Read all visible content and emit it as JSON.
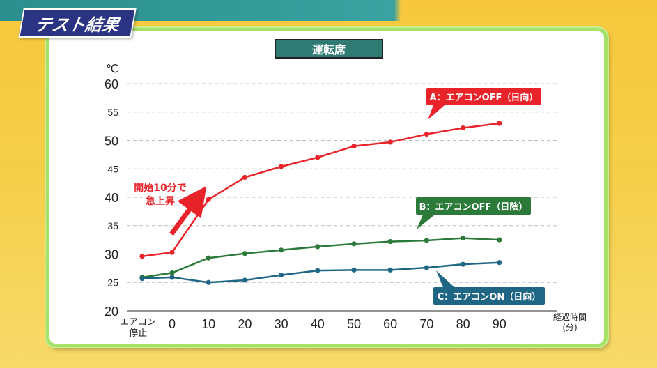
{
  "page": {
    "title": "テスト結果"
  },
  "chart_data": {
    "type": "line",
    "title": "運転席",
    "ylabel": "℃",
    "xlabel": "経過時間\n(分)",
    "ylim": [
      20,
      60
    ],
    "y_ticks": [
      20,
      25,
      30,
      35,
      40,
      45,
      50,
      55,
      60
    ],
    "gridlines": true,
    "categories": [
      "エアコン\n停止",
      "0",
      "10",
      "20",
      "30",
      "40",
      "50",
      "60",
      "70",
      "80",
      "90"
    ],
    "series": [
      {
        "name": "A：エアコンOFF（日向）",
        "color": "#e8242a",
        "values": [
          29.6,
          30.3,
          39.6,
          43.5,
          45.4,
          47.0,
          49.0,
          49.7,
          51.1,
          52.2,
          53.0
        ]
      },
      {
        "name": "B：エアコンOFF（日陰）",
        "color": "#2c7a3a",
        "values": [
          25.9,
          26.7,
          29.3,
          30.1,
          30.7,
          31.3,
          31.8,
          32.2,
          32.4,
          32.8,
          32.5
        ]
      },
      {
        "name": "C：エアコンON（日向）",
        "color": "#1f6685",
        "values": [
          25.7,
          25.9,
          25.0,
          25.4,
          26.3,
          27.1,
          27.2,
          27.2,
          27.6,
          28.2,
          28.5
        ]
      }
    ],
    "annotations": [
      {
        "text": "開始10分で\n急上昇",
        "color": "#e8242a"
      }
    ]
  }
}
